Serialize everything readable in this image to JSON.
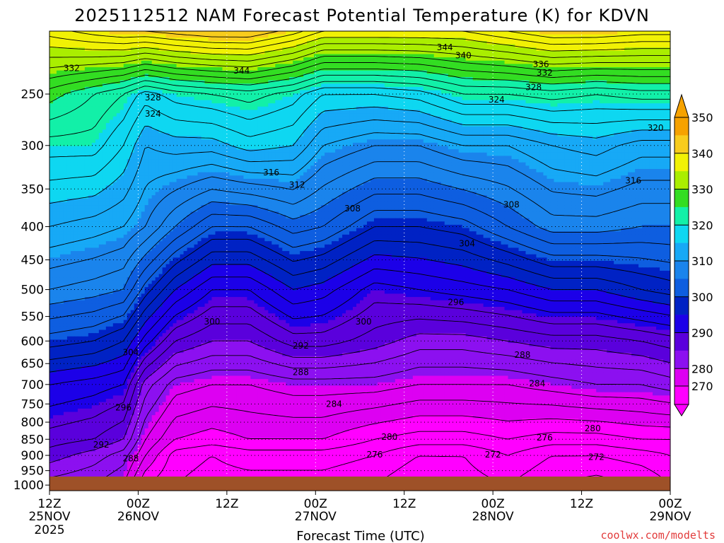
{
  "colors": {
    "band_270": "#ff00ff",
    "band_280": "#dd00f2",
    "band_285": "#8c10f0",
    "band_290": "#5a00dc",
    "band_295": "#1c00e8",
    "band_300": "#0022c4",
    "band_305": "#0e5ee0",
    "band_310": "#1a84ec",
    "band_315": "#17a9f6",
    "band_320": "#0ed7f1",
    "band_325": "#12f0a8",
    "band_330": "#33dd22",
    "band_335": "#aaee00",
    "band_340": "#f1f105",
    "band_345": "#f8cc1d",
    "band_350": "#f6a200",
    "ground": "#9e5128"
  },
  "chart_data": {
    "type": "heatmap",
    "title": "2025112512 NAM Forecast Potential Temperature (K) for KDVN",
    "xlabel": "Forecast Time (UTC)",
    "credit": "coolwx.com/modelts",
    "x_ticks": [
      {
        "hour": 0,
        "top": "12Z",
        "mid": "25NOV",
        "bot": "2025"
      },
      {
        "hour": 12,
        "top": "00Z",
        "mid": "26NOV",
        "bot": ""
      },
      {
        "hour": 24,
        "top": "12Z",
        "mid": "",
        "bot": ""
      },
      {
        "hour": 36,
        "top": "00Z",
        "mid": "27NOV",
        "bot": ""
      },
      {
        "hour": 48,
        "top": "12Z",
        "mid": "",
        "bot": ""
      },
      {
        "hour": 60,
        "top": "00Z",
        "mid": "28NOV",
        "bot": ""
      },
      {
        "hour": 72,
        "top": "12Z",
        "mid": "",
        "bot": ""
      },
      {
        "hour": 84,
        "top": "00Z",
        "mid": "29NOV",
        "bot": ""
      }
    ],
    "x_range_hours": [
      0,
      84
    ],
    "y_axis": {
      "unit": "hPa",
      "scale": "log",
      "range": [
        1020,
        200
      ],
      "ticks": [
        1000,
        950,
        900,
        850,
        800,
        750,
        700,
        650,
        600,
        550,
        500,
        450,
        400,
        350,
        300,
        250
      ]
    },
    "colorbar": {
      "labels": [
        "350",
        "340",
        "330",
        "320",
        "310",
        "300",
        "290",
        "280",
        "270"
      ],
      "steps": [
        350,
        345,
        340,
        335,
        330,
        325,
        320,
        315,
        310,
        305,
        300,
        295,
        290,
        285,
        280,
        270
      ]
    },
    "contour_levels": [
      270,
      272,
      274,
      276,
      278,
      280,
      282,
      284,
      286,
      288,
      290,
      292,
      294,
      296,
      298,
      300,
      302,
      304,
      306,
      308,
      310,
      312,
      314,
      316,
      318,
      320,
      322,
      324,
      326,
      328,
      330,
      332,
      334,
      336,
      338,
      340,
      342,
      344,
      346,
      348
    ],
    "theta_profiles": [
      {
        "hour": 0,
        "sfc": 290,
        "pts": [
          [
            1000,
            287
          ],
          [
            900,
            291
          ],
          [
            850,
            293
          ],
          [
            700,
            298
          ],
          [
            600,
            305
          ],
          [
            500,
            312
          ],
          [
            400,
            318
          ],
          [
            300,
            325
          ],
          [
            250,
            331
          ],
          [
            200,
            343
          ]
        ]
      },
      {
        "hour": 6,
        "sfc": 289,
        "pts": [
          [
            1000,
            286
          ],
          [
            900,
            289
          ],
          [
            850,
            292
          ],
          [
            700,
            297
          ],
          [
            600,
            304
          ],
          [
            500,
            311
          ],
          [
            400,
            317
          ],
          [
            300,
            325
          ],
          [
            250,
            328
          ],
          [
            200,
            345
          ]
        ]
      },
      {
        "hour": 10,
        "sfc": 287,
        "pts": [
          [
            1000,
            284
          ],
          [
            900,
            287
          ],
          [
            850,
            290
          ],
          [
            700,
            296
          ],
          [
            600,
            302
          ],
          [
            500,
            310
          ],
          [
            400,
            316
          ],
          [
            300,
            322
          ],
          [
            250,
            326
          ],
          [
            200,
            346
          ]
        ]
      },
      {
        "hour": 13,
        "sfc": 282,
        "pts": [
          [
            1000,
            278
          ],
          [
            900,
            282
          ],
          [
            850,
            284
          ],
          [
            700,
            289
          ],
          [
            600,
            297
          ],
          [
            500,
            305
          ],
          [
            400,
            314
          ],
          [
            300,
            318
          ],
          [
            250,
            323
          ],
          [
            200,
            346
          ]
        ]
      },
      {
        "hour": 17,
        "sfc": 278,
        "pts": [
          [
            1000,
            276
          ],
          [
            900,
            277
          ],
          [
            850,
            280
          ],
          [
            700,
            285
          ],
          [
            600,
            292
          ],
          [
            500,
            300
          ],
          [
            400,
            310
          ],
          [
            300,
            319
          ],
          [
            250,
            325
          ],
          [
            200,
            347
          ]
        ]
      },
      {
        "hour": 22,
        "sfc": 277,
        "pts": [
          [
            1000,
            275
          ],
          [
            900,
            276
          ],
          [
            850,
            279
          ],
          [
            700,
            284
          ],
          [
            600,
            290
          ],
          [
            500,
            296
          ],
          [
            400,
            306
          ],
          [
            300,
            319
          ],
          [
            250,
            326
          ],
          [
            200,
            348
          ]
        ]
      },
      {
        "hour": 27,
        "sfc": 277,
        "pts": [
          [
            1000,
            275
          ],
          [
            900,
            277
          ],
          [
            850,
            280
          ],
          [
            700,
            284
          ],
          [
            600,
            290
          ],
          [
            500,
            296
          ],
          [
            400,
            306
          ],
          [
            300,
            321
          ],
          [
            250,
            327
          ],
          [
            200,
            348
          ]
        ]
      },
      {
        "hour": 33,
        "sfc": 278,
        "pts": [
          [
            1000,
            275
          ],
          [
            900,
            277
          ],
          [
            850,
            280
          ],
          [
            700,
            285
          ],
          [
            600,
            293
          ],
          [
            500,
            300
          ],
          [
            400,
            309
          ],
          [
            300,
            320
          ],
          [
            250,
            325
          ],
          [
            200,
            345
          ]
        ]
      },
      {
        "hour": 37,
        "sfc": 278,
        "pts": [
          [
            1000,
            275
          ],
          [
            900,
            277
          ],
          [
            850,
            280
          ],
          [
            700,
            285
          ],
          [
            600,
            293
          ],
          [
            500,
            299
          ],
          [
            400,
            308
          ],
          [
            300,
            316
          ],
          [
            250,
            322
          ],
          [
            200,
            342
          ]
        ]
      },
      {
        "hour": 44,
        "sfc": 276.5,
        "pts": [
          [
            1000,
            274
          ],
          [
            900,
            276
          ],
          [
            850,
            278
          ],
          [
            700,
            285
          ],
          [
            600,
            291
          ],
          [
            500,
            295
          ],
          [
            400,
            304
          ],
          [
            300,
            314
          ],
          [
            250,
            322
          ],
          [
            200,
            342
          ]
        ]
      },
      {
        "hour": 50,
        "sfc": 274,
        "pts": [
          [
            1000,
            272
          ],
          [
            900,
            274
          ],
          [
            850,
            277
          ],
          [
            700,
            284
          ],
          [
            600,
            289
          ],
          [
            500,
            296
          ],
          [
            400,
            304
          ],
          [
            300,
            314
          ],
          [
            250,
            323
          ],
          [
            200,
            342
          ]
        ]
      },
      {
        "hour": 56,
        "sfc": 277,
        "pts": [
          [
            1000,
            273
          ],
          [
            900,
            274
          ],
          [
            850,
            277
          ],
          [
            700,
            284
          ],
          [
            600,
            289
          ],
          [
            500,
            297
          ],
          [
            400,
            305
          ],
          [
            300,
            316
          ],
          [
            250,
            326
          ],
          [
            200,
            342
          ]
        ]
      },
      {
        "hour": 62,
        "sfc": 278,
        "pts": [
          [
            1000,
            274
          ],
          [
            900,
            276
          ],
          [
            850,
            278
          ],
          [
            700,
            284
          ],
          [
            600,
            290
          ],
          [
            500,
            298
          ],
          [
            400,
            308
          ],
          [
            300,
            316
          ],
          [
            250,
            326
          ],
          [
            200,
            344
          ]
        ]
      },
      {
        "hour": 68,
        "sfc": 275,
        "pts": [
          [
            1000,
            272
          ],
          [
            900,
            274
          ],
          [
            850,
            277
          ],
          [
            700,
            285
          ],
          [
            600,
            291
          ],
          [
            500,
            300
          ],
          [
            400,
            311
          ],
          [
            300,
            318
          ],
          [
            250,
            327
          ],
          [
            200,
            346
          ]
        ]
      },
      {
        "hour": 74,
        "sfc": 274,
        "pts": [
          [
            1000,
            271
          ],
          [
            900,
            274
          ],
          [
            850,
            277
          ],
          [
            700,
            286
          ],
          [
            600,
            291
          ],
          [
            500,
            300
          ],
          [
            400,
            311
          ],
          [
            300,
            319
          ],
          [
            250,
            326
          ],
          [
            200,
            346
          ]
        ]
      },
      {
        "hour": 80,
        "sfc": 276,
        "pts": [
          [
            1000,
            272
          ],
          [
            900,
            275
          ],
          [
            850,
            278
          ],
          [
            700,
            286
          ],
          [
            600,
            292
          ],
          [
            500,
            302
          ],
          [
            400,
            310
          ],
          [
            300,
            317
          ],
          [
            250,
            327
          ],
          [
            200,
            345
          ]
        ]
      },
      {
        "hour": 84,
        "sfc": 278,
        "pts": [
          [
            1000,
            274
          ],
          [
            900,
            276
          ],
          [
            850,
            278
          ],
          [
            700,
            287
          ],
          [
            600,
            293
          ],
          [
            500,
            303
          ],
          [
            400,
            310
          ],
          [
            300,
            317
          ],
          [
            250,
            327
          ],
          [
            200,
            345
          ]
        ]
      }
    ],
    "contour_labels": [
      {
        "text": "344",
        "hour": 53.5,
        "p": 212
      },
      {
        "text": "340",
        "hour": 56,
        "p": 218
      },
      {
        "text": "336",
        "hour": 66.5,
        "p": 225
      },
      {
        "text": "332",
        "hour": 67,
        "p": 232
      },
      {
        "text": "328",
        "hour": 65.5,
        "p": 244
      },
      {
        "text": "324",
        "hour": 60.5,
        "p": 255
      },
      {
        "text": "320",
        "hour": 82,
        "p": 282
      },
      {
        "text": "332",
        "hour": 3,
        "p": 228
      },
      {
        "text": "344",
        "hour": 26,
        "p": 230
      },
      {
        "text": "328",
        "hour": 14,
        "p": 253
      },
      {
        "text": "324",
        "hour": 14,
        "p": 268
      },
      {
        "text": "316",
        "hour": 30,
        "p": 330
      },
      {
        "text": "312",
        "hour": 33.5,
        "p": 345
      },
      {
        "text": "316",
        "hour": 79,
        "p": 340
      },
      {
        "text": "308",
        "hour": 41,
        "p": 375
      },
      {
        "text": "308",
        "hour": 62.5,
        "p": 370
      },
      {
        "text": "304",
        "hour": 56.5,
        "p": 425
      },
      {
        "text": "296",
        "hour": 55,
        "p": 523
      },
      {
        "text": "300",
        "hour": 22,
        "p": 560
      },
      {
        "text": "300",
        "hour": 42.5,
        "p": 560
      },
      {
        "text": "304",
        "hour": 11,
        "p": 625
      },
      {
        "text": "292",
        "hour": 34,
        "p": 610
      },
      {
        "text": "288",
        "hour": 64,
        "p": 630
      },
      {
        "text": "288",
        "hour": 34,
        "p": 670
      },
      {
        "text": "284",
        "hour": 66,
        "p": 698
      },
      {
        "text": "284",
        "hour": 38.5,
        "p": 750
      },
      {
        "text": "296",
        "hour": 10,
        "p": 760
      },
      {
        "text": "280",
        "hour": 73.5,
        "p": 818
      },
      {
        "text": "276",
        "hour": 67,
        "p": 845
      },
      {
        "text": "280",
        "hour": 46,
        "p": 843
      },
      {
        "text": "292",
        "hour": 7,
        "p": 867
      },
      {
        "text": "276",
        "hour": 44,
        "p": 898
      },
      {
        "text": "272",
        "hour": 60,
        "p": 898
      },
      {
        "text": "272",
        "hour": 74,
        "p": 905
      },
      {
        "text": "288",
        "hour": 11,
        "p": 910
      }
    ]
  }
}
